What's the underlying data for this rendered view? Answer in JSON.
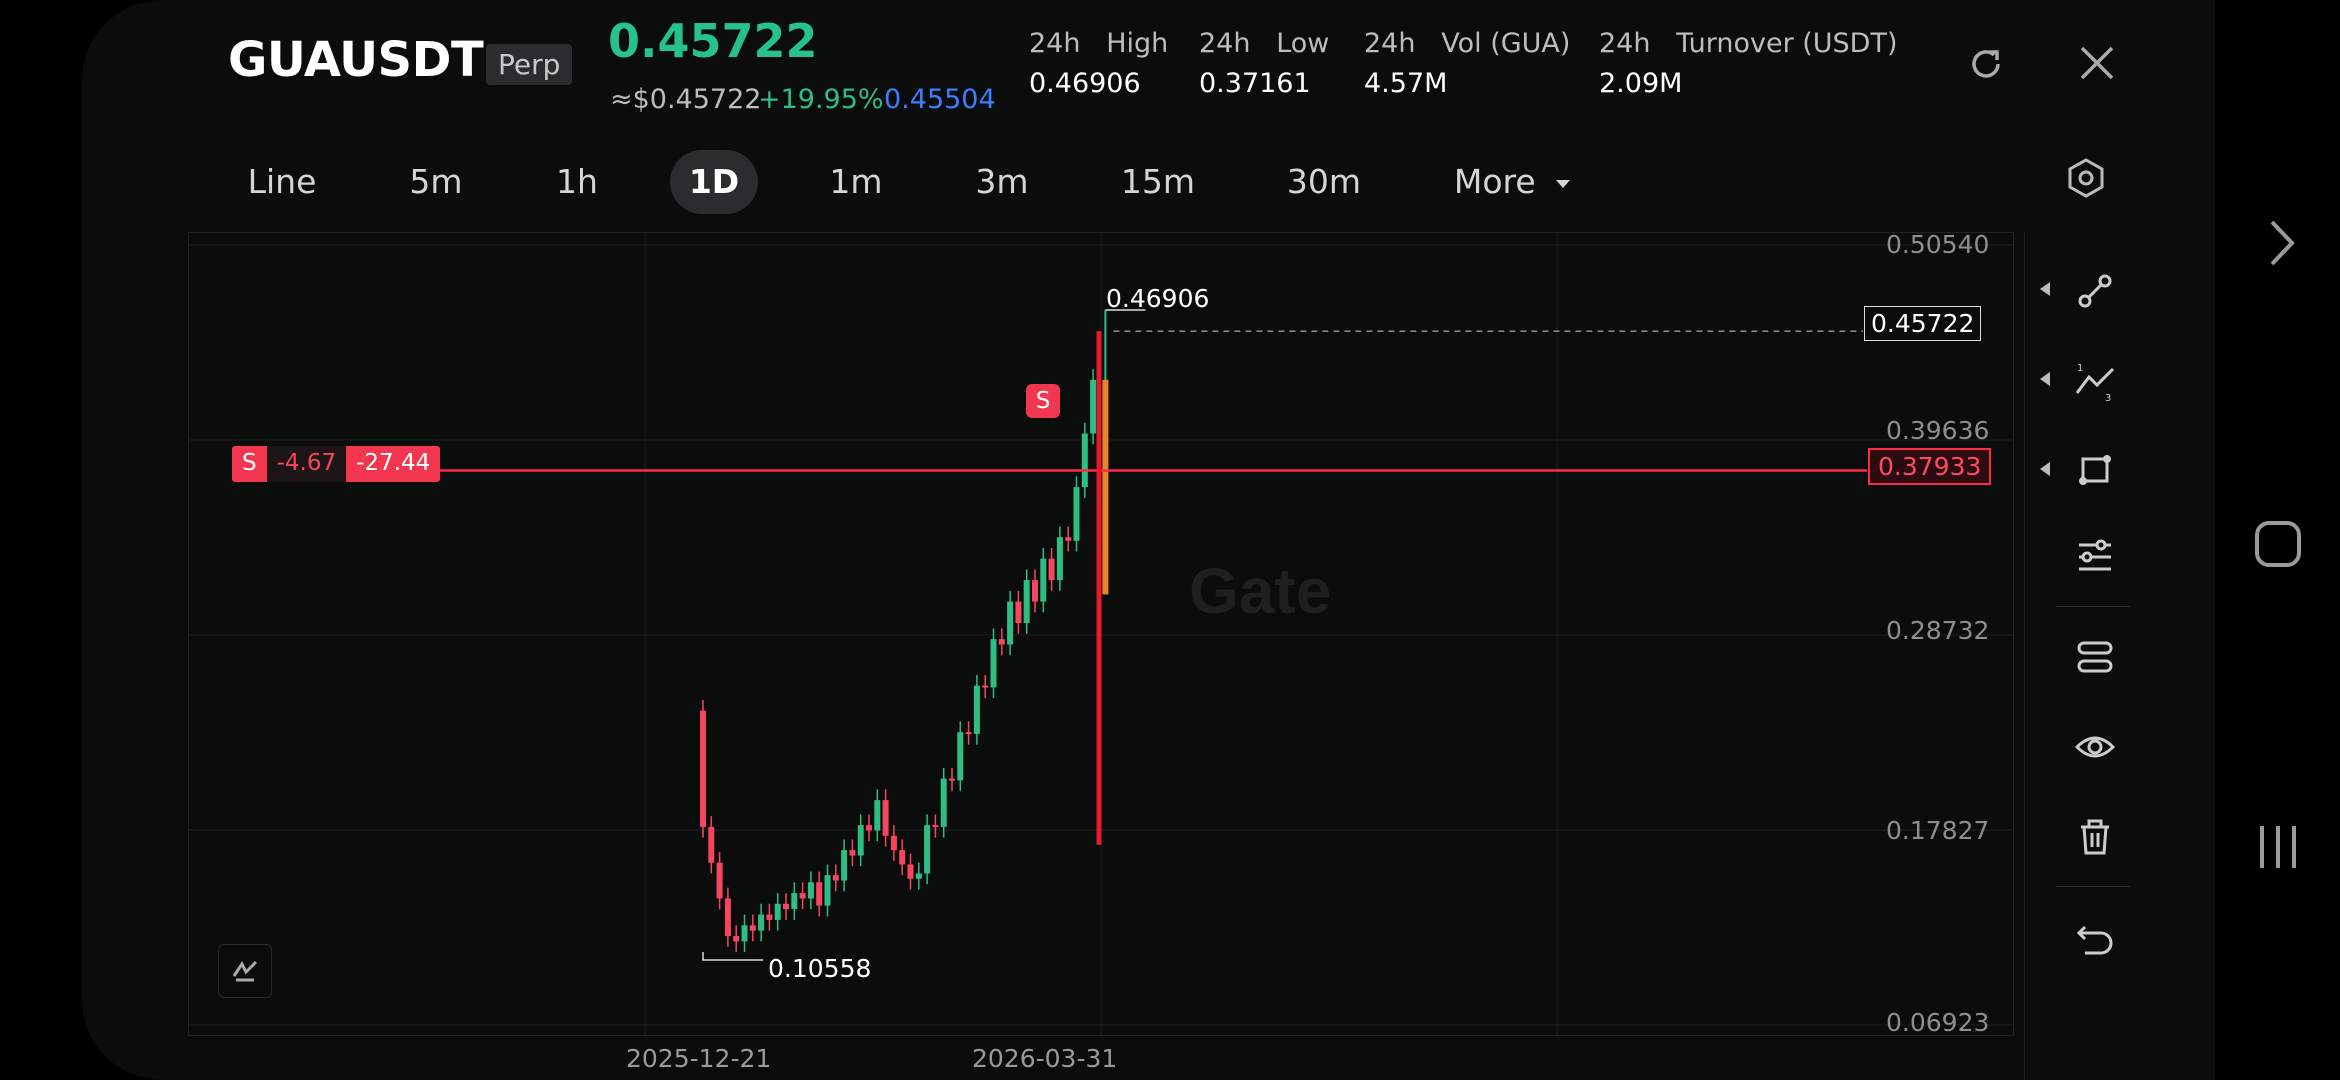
{
  "header": {
    "symbol": "GUAUSDT",
    "badge": "Perp",
    "last_price": "0.45722",
    "usd_price": "≈$0.45722",
    "change_pct": "+19.95%",
    "mark_price": "0.45504",
    "stats": [
      {
        "label": "24h   High",
        "value": "0.46906"
      },
      {
        "label": "24h   Low",
        "value": "0.37161"
      },
      {
        "label": "24h   Vol (GUA)",
        "value": "4.57M"
      },
      {
        "label": "24h   Turnover (USDT)",
        "value": "2.09M"
      }
    ],
    "icons": {
      "refresh": "refresh-icon",
      "close": "close-icon"
    }
  },
  "tabs": [
    "Line",
    "5m",
    "1h",
    "1D",
    "1m",
    "3m",
    "15m",
    "30m",
    "More"
  ],
  "active_tab": "1D",
  "chart_data": {
    "type": "candlestick",
    "y_ticks": [
      "0.50540",
      "0.39636",
      "0.28732",
      "0.17827",
      "0.06923"
    ],
    "x_ticks": [
      "2025-12-21",
      "2026-03-31"
    ],
    "ylim": [
      0.06923,
      0.5054
    ],
    "high_marker": "0.46906",
    "low_marker": "0.10558",
    "current_price_label": "0.45722",
    "position_line_price": "0.37933",
    "position_side": "S",
    "position_pnl": "-4.67",
    "position_pnl_pct": "-27.44",
    "trade_marker": "S",
    "watermark": "Gate",
    "colors": {
      "up": "#2ebd85",
      "down": "#f6465d",
      "position": "#ff2a45"
    }
  },
  "toolbar_icons": [
    "draw-line-icon",
    "fib-icon",
    "shape-icon",
    "indicators-icon",
    "settings-sliders-icon",
    "eye-icon",
    "trash-icon",
    "undo-icon"
  ],
  "system_nav": {
    "forward": "chevron-right-icon",
    "home": "home-icon",
    "recents": "recents-icon"
  }
}
